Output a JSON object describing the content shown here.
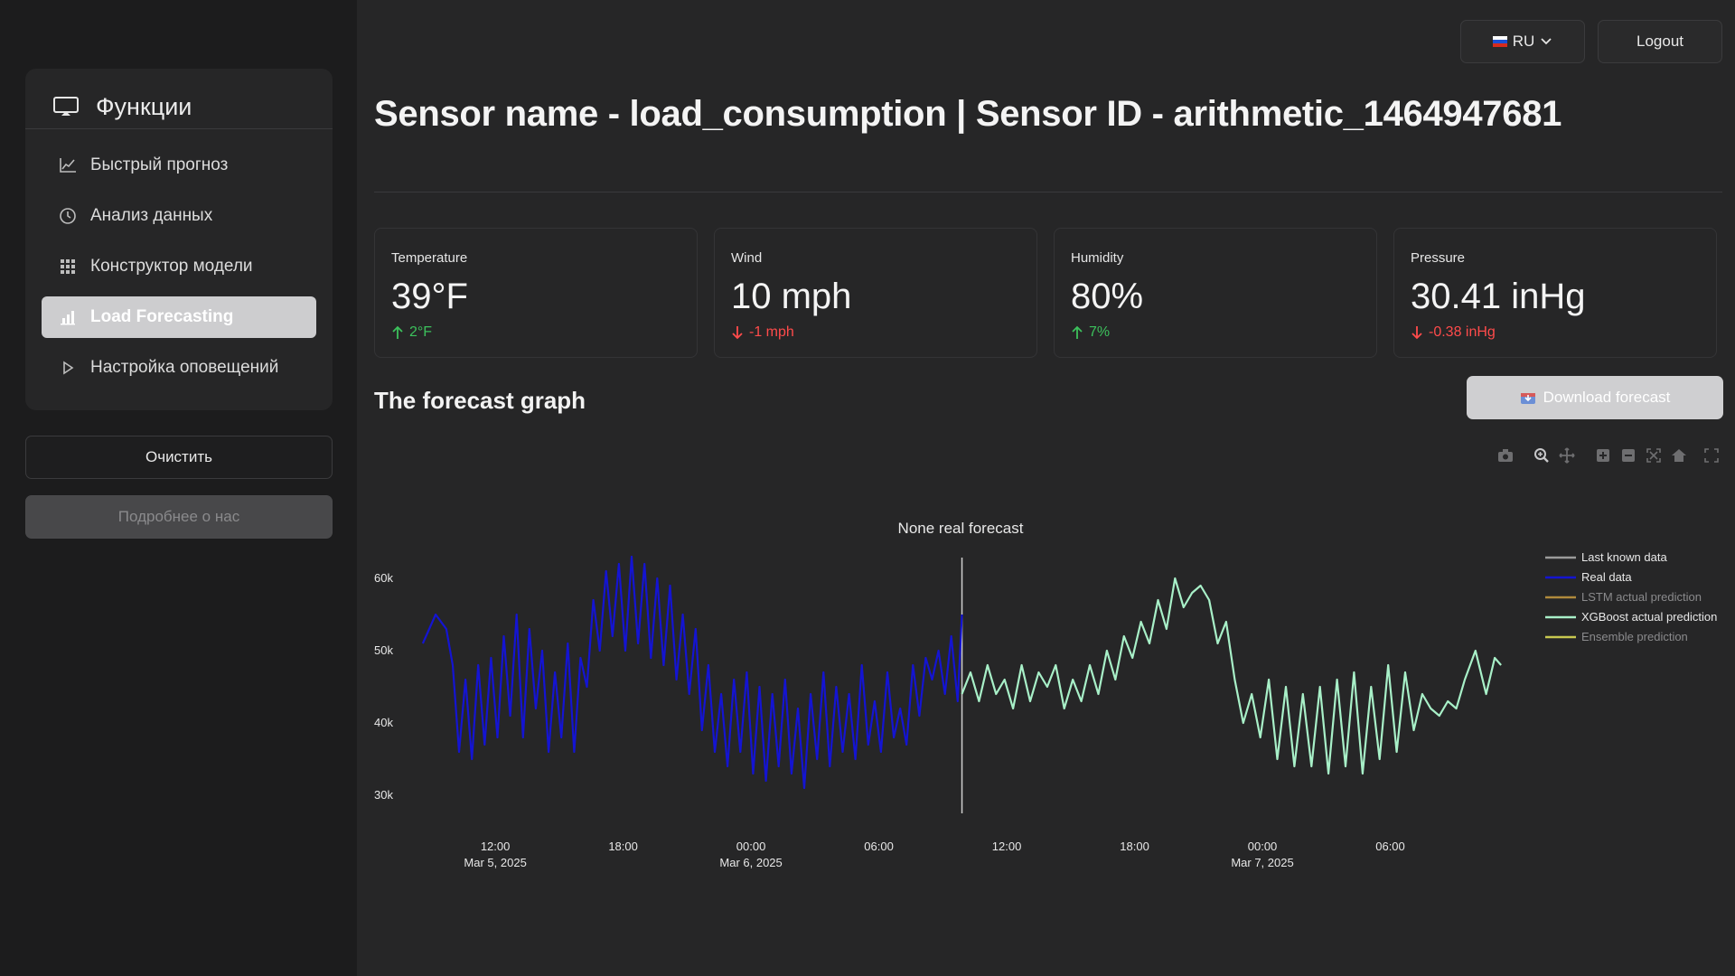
{
  "sidebar": {
    "title": "Функции",
    "items": [
      {
        "label": "Быстрый прогноз",
        "icon": "line-chart-icon"
      },
      {
        "label": "Анализ данных",
        "icon": "clock-icon"
      },
      {
        "label": "Конструктор модели",
        "icon": "grid-icon"
      },
      {
        "label": "Load Forecasting",
        "icon": "bar-chart-icon",
        "active": true
      },
      {
        "label": "Настройка оповещений",
        "icon": "triangle-right-icon"
      }
    ],
    "clear_label": "Очистить",
    "about_label": "Подробнее о нас"
  },
  "header": {
    "lang_label": "RU",
    "logout_label": "Logout",
    "title": "Sensor name - load_consumption | Sensor ID - arithmetic_1464947681"
  },
  "metrics": [
    {
      "label": "Temperature",
      "value": "39°F",
      "delta": "2°F",
      "direction": "up"
    },
    {
      "label": "Wind",
      "value": "10 mph",
      "delta": "-1 mph",
      "direction": "down"
    },
    {
      "label": "Humidity",
      "value": "80%",
      "delta": "7%",
      "direction": "up"
    },
    {
      "label": "Pressure",
      "value": "30.41 inHg",
      "delta": "-0.38 inHg",
      "direction": "down"
    }
  ],
  "forecast": {
    "section_title": "The forecast graph",
    "download_label": "Download forecast"
  },
  "colors": {
    "real": "#1414d2",
    "xgboost": "#a8f0c8",
    "last_known": "#9b9b9b",
    "lstm": "#b08a3c",
    "ensemble": "#c8c850",
    "up": "#3cc15c",
    "down": "#ff4b4b"
  },
  "chart_data": {
    "type": "line",
    "annotations": [
      "None real forecast"
    ],
    "ylim": [
      25000,
      65000
    ],
    "y_ticks": [
      30000,
      40000,
      50000,
      60000
    ],
    "y_tick_labels": [
      "30k",
      "40k",
      "50k",
      "60k"
    ],
    "x_ticks": [
      {
        "t": 12,
        "label": "12:00",
        "sublabel": "Mar 5, 2025"
      },
      {
        "t": 18,
        "label": "18:00",
        "sublabel": ""
      },
      {
        "t": 24,
        "label": "00:00",
        "sublabel": "Mar 6, 2025"
      },
      {
        "t": 30,
        "label": "06:00",
        "sublabel": ""
      },
      {
        "t": 36,
        "label": "12:00",
        "sublabel": ""
      },
      {
        "t": 42,
        "label": "18:00",
        "sublabel": ""
      },
      {
        "t": 48,
        "label": "00:00",
        "sublabel": "Mar 7, 2025"
      },
      {
        "t": 54,
        "label": "06:00",
        "sublabel": ""
      }
    ],
    "xlim": [
      7.5,
      60
    ],
    "forecast_start": 33.9,
    "legend": [
      "Last known data",
      "Real data",
      "LSTM actual prediction",
      "XGBoost actual prediction",
      "Ensemble prediction"
    ],
    "series": [
      {
        "name": "Real data",
        "x": [
          8.6,
          9.2,
          9.7,
          10,
          10.3,
          10.6,
          10.9,
          11.2,
          11.5,
          11.8,
          12.1,
          12.4,
          12.7,
          13,
          13.3,
          13.6,
          13.9,
          14.2,
          14.5,
          14.8,
          15.1,
          15.4,
          15.7,
          16,
          16.3,
          16.6,
          16.9,
          17.2,
          17.5,
          17.8,
          18.1,
          18.4,
          18.7,
          19,
          19.3,
          19.6,
          19.9,
          20.2,
          20.5,
          20.8,
          21.1,
          21.4,
          21.7,
          22,
          22.3,
          22.6,
          22.9,
          23.2,
          23.5,
          23.8,
          24.1,
          24.4,
          24.7,
          25,
          25.3,
          25.6,
          25.9,
          26.2,
          26.5,
          26.8,
          27.1,
          27.4,
          27.7,
          28,
          28.3,
          28.6,
          28.9,
          29.2,
          29.5,
          29.8,
          30.1,
          30.4,
          30.7,
          31,
          31.3,
          31.6,
          31.9,
          32.2,
          32.5,
          32.8,
          33.1,
          33.4,
          33.7,
          33.9
        ],
        "y": [
          51000,
          55000,
          53000,
          48000,
          36000,
          46000,
          35000,
          48000,
          37000,
          49000,
          38000,
          52000,
          41000,
          55000,
          38000,
          53000,
          42000,
          50000,
          36000,
          47000,
          38000,
          51000,
          36000,
          49000,
          45000,
          57000,
          50000,
          61000,
          52000,
          62000,
          50000,
          63000,
          51000,
          62000,
          49000,
          60000,
          48000,
          59000,
          46000,
          55000,
          44000,
          53000,
          39000,
          48000,
          36000,
          44000,
          34000,
          46000,
          36000,
          47000,
          33000,
          45000,
          32000,
          44000,
          34000,
          46000,
          33000,
          42000,
          31000,
          44000,
          35000,
          47000,
          34000,
          45000,
          36000,
          44000,
          35000,
          48000,
          37000,
          43000,
          36000,
          47000,
          38000,
          42000,
          37000,
          48000,
          41000,
          49000,
          46000,
          50000,
          44000,
          52000,
          43000,
          55000
        ]
      },
      {
        "name": "XGBoost actual prediction",
        "x": [
          33.9,
          34.3,
          34.7,
          35.1,
          35.5,
          35.9,
          36.3,
          36.7,
          37.1,
          37.5,
          37.9,
          38.3,
          38.7,
          39.1,
          39.5,
          39.9,
          40.3,
          40.7,
          41.1,
          41.5,
          41.9,
          42.3,
          42.7,
          43.1,
          43.5,
          43.9,
          44.3,
          44.7,
          45.1,
          45.5,
          45.9,
          46.3,
          46.7,
          47.1,
          47.5,
          47.9,
          48.3,
          48.7,
          49.1,
          49.5,
          49.9,
          50.3,
          50.7,
          51.1,
          51.5,
          51.9,
          52.3,
          52.7,
          53.1,
          53.5,
          53.9,
          54.3,
          54.7,
          55.1,
          55.5,
          55.9,
          56.3,
          56.7,
          57.1,
          57.5,
          58,
          58.5,
          58.9,
          59.2
        ],
        "y": [
          44000,
          47000,
          43000,
          48000,
          44000,
          46000,
          42000,
          48000,
          43000,
          47000,
          45000,
          48000,
          42000,
          46000,
          43000,
          48000,
          44000,
          50000,
          46000,
          52000,
          49000,
          54000,
          51000,
          57000,
          53000,
          60000,
          56000,
          58000,
          59000,
          57000,
          51000,
          54000,
          46000,
          40000,
          44000,
          38000,
          46000,
          35000,
          45000,
          34000,
          44000,
          34000,
          45000,
          33000,
          46000,
          34000,
          47000,
          33000,
          45000,
          35000,
          48000,
          36000,
          47000,
          39000,
          44000,
          42000,
          41000,
          43000,
          42000,
          46000,
          50000,
          44000,
          49000,
          48000
        ]
      }
    ]
  }
}
